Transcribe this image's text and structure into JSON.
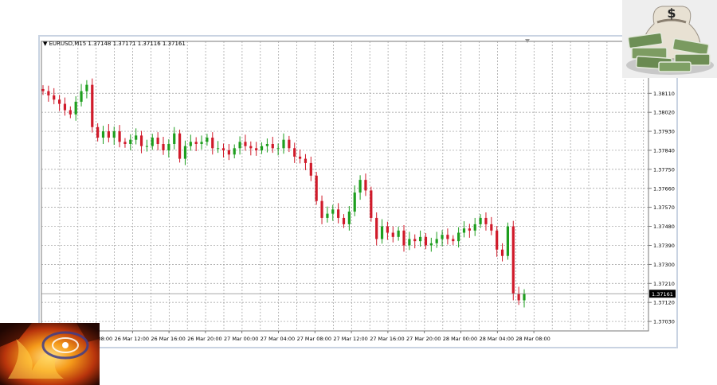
{
  "window": {
    "header_symbol": "EURUSD,M15",
    "header_values": "1.37148 1.37171 1.37116 1.37161"
  },
  "chart_data": {
    "type": "candlestick",
    "symbol": "EURUSD",
    "timeframe": "M15",
    "ohlc_header": [
      1.37148,
      1.37171,
      1.37116,
      1.37161
    ],
    "current_price": 1.37161,
    "current_price_label": "1.37161",
    "ylim": [
      1.37,
      1.3825
    ],
    "y_ticks": [
      "1.38110",
      "1.38020",
      "1.37930",
      "1.37840",
      "1.37750",
      "1.37660",
      "1.37570",
      "1.37480",
      "1.37390",
      "1.37300",
      "1.37210",
      "1.37120",
      "1.37030"
    ],
    "y_tick_values": [
      1.3811,
      1.3802,
      1.3793,
      1.3784,
      1.3775,
      1.3766,
      1.3757,
      1.3748,
      1.3739,
      1.373,
      1.3721,
      1.3712,
      1.3703
    ],
    "x_ticks": [
      "26 Mar 08:00",
      "26 Mar 12:00",
      "26 Mar 16:00",
      "26 Mar 20:00",
      "27 Mar 00:00",
      "27 Mar 04:00",
      "27 Mar 08:00",
      "27 Mar 12:00",
      "27 Mar 16:00",
      "27 Mar 20:00",
      "28 Mar 00:00",
      "28 Mar 04:00",
      "28 Mar 08:00"
    ],
    "grid": true,
    "bull_color": "#1e9e1e",
    "bear_color": "#d01a2a",
    "closes": [
      1.3812,
      1.381,
      1.3808,
      1.3806,
      1.3803,
      1.3801,
      1.3807,
      1.3812,
      1.3815,
      1.3795,
      1.379,
      1.3793,
      1.379,
      1.3793,
      1.3788,
      1.3787,
      1.3789,
      1.3791,
      1.3786,
      1.3786,
      1.379,
      1.3787,
      1.3784,
      1.3787,
      1.3792,
      1.378,
      1.3786,
      1.3788,
      1.3787,
      1.3788,
      1.379,
      1.3785,
      1.3785,
      1.3784,
      1.3782,
      1.3785,
      1.3788,
      1.3786,
      1.3785,
      1.3784,
      1.3786,
      1.3787,
      1.3785,
      1.3785,
      1.3789,
      1.3785,
      1.3781,
      1.378,
      1.3778,
      1.3772,
      1.376,
      1.3752,
      1.3754,
      1.3756,
      1.3752,
      1.3749,
      1.3755,
      1.3764,
      1.377,
      1.3765,
      1.3752,
      1.3742,
      1.3748,
      1.3745,
      1.3743,
      1.3746,
      1.3739,
      1.3742,
      1.3741,
      1.3743,
      1.3739,
      1.374,
      1.3742,
      1.3744,
      1.3742,
      1.3741,
      1.3745,
      1.3747,
      1.3746,
      1.3749,
      1.3752,
      1.3749,
      1.3746,
      1.3737,
      1.3734,
      1.3748,
      1.3716,
      1.3713,
      1.3716
    ]
  }
}
